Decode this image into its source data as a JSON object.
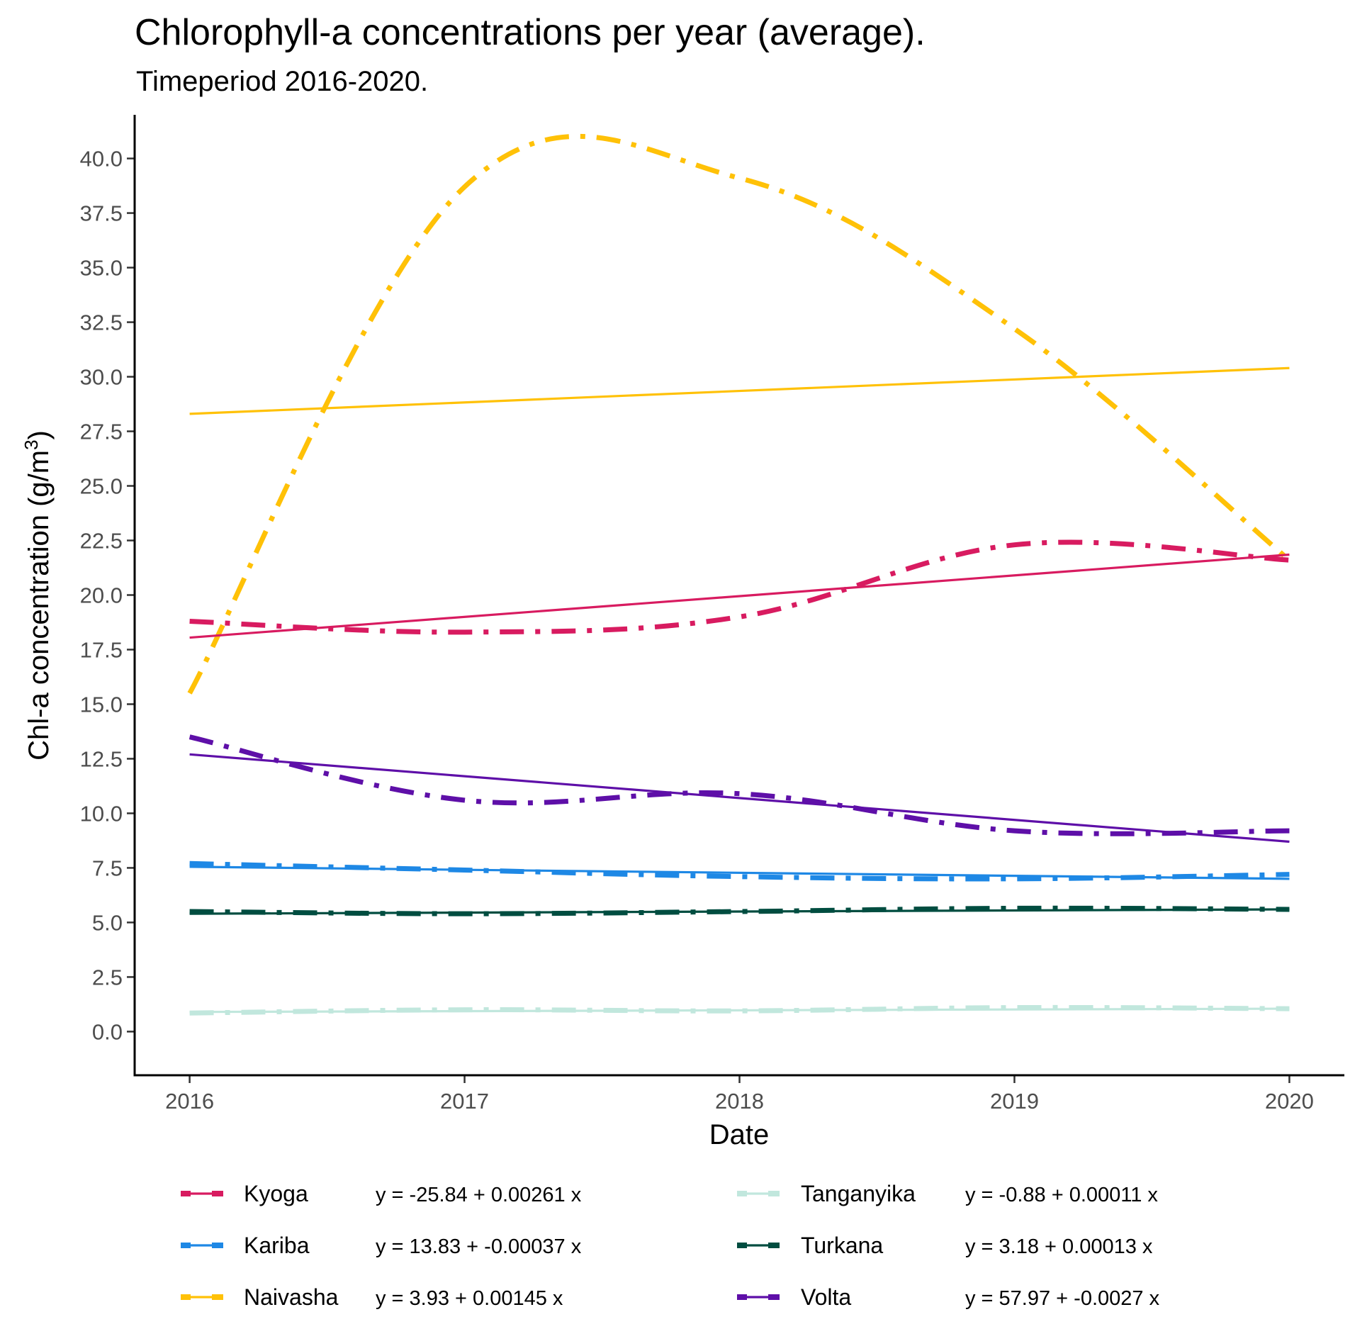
{
  "chart_data": {
    "type": "line",
    "title": "Chlorophyll-a concentrations per year (average).",
    "subtitle": "Timeperiod 2016-2020.",
    "xlabel": "Date",
    "ylabel_main": "Chl-a concentration (g/m",
    "ylabel_sup": "3",
    "ylabel_close": ")",
    "x": [
      2016,
      2017,
      2018,
      2019,
      2020
    ],
    "x_tick_labels": [
      "2016",
      "2017",
      "2018",
      "2019",
      "2020"
    ],
    "xlim": [
      2015.8,
      2020.2
    ],
    "ylim": [
      -2.0,
      42.0
    ],
    "y_ticks": [
      0,
      2.5,
      5,
      7.5,
      10,
      12.5,
      15,
      17.5,
      20,
      22.5,
      25,
      27.5,
      30,
      32.5,
      35,
      37.5,
      40
    ],
    "y_tick_labels": [
      "0.0",
      "2.5",
      "5.0",
      "7.5",
      "10.0",
      "12.5",
      "15.0",
      "17.5",
      "20.0",
      "22.5",
      "25.0",
      "27.5",
      "30.0",
      "32.5",
      "35.0",
      "37.5",
      "40.0"
    ],
    "grid": false,
    "legend_position": "bottom",
    "series": [
      {
        "name": "Kyoga",
        "color": "#D81B60",
        "values": [
          18.8,
          18.3,
          19.0,
          22.3,
          21.6
        ],
        "trend": [
          18.05,
          21.85
        ],
        "equation": "y = -25.84 + 0.00261 x"
      },
      {
        "name": "Kariba",
        "color": "#1E88E5",
        "values": [
          7.7,
          7.4,
          7.1,
          7.0,
          7.2
        ],
        "trend": [
          7.55,
          7.0
        ],
        "equation": "y = 13.83 + -0.00037 x"
      },
      {
        "name": "Naivasha",
        "color": "#FFC107",
        "values": [
          15.5,
          38.7,
          39.1,
          32.2,
          21.6
        ],
        "trend": [
          28.3,
          30.4
        ],
        "equation": "y = 3.93 + 0.00145 x"
      },
      {
        "name": "Tanganyika",
        "color": "#C1E7DD",
        "values": [
          0.85,
          1.0,
          0.95,
          1.1,
          1.05
        ],
        "trend": [
          0.9,
          1.05
        ],
        "equation": "y = -0.88 + 0.00011 x"
      },
      {
        "name": "Turkana",
        "color": "#004D40",
        "values": [
          5.5,
          5.4,
          5.5,
          5.65,
          5.6
        ],
        "trend": [
          5.4,
          5.6
        ],
        "equation": "y = 3.18 + 0.00013 x"
      },
      {
        "name": "Volta",
        "color": "#5E0FA8",
        "values": [
          13.5,
          10.6,
          10.9,
          9.2,
          9.2
        ],
        "trend": [
          12.7,
          8.7
        ],
        "equation": "y = 57.97 + -0.0027 x"
      }
    ]
  }
}
